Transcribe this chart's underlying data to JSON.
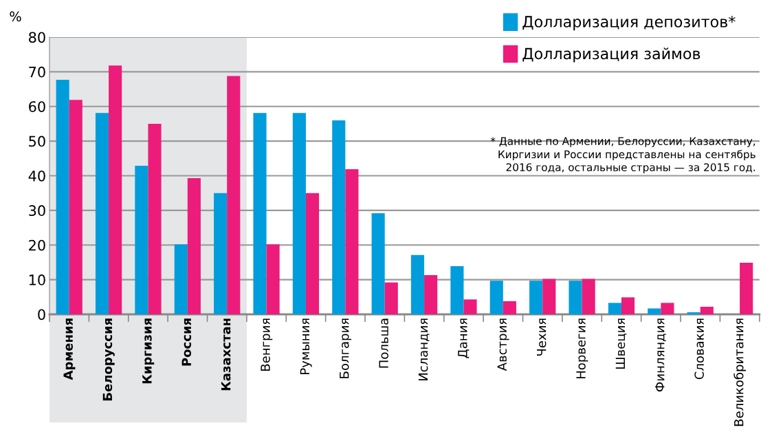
{
  "chart_data": {
    "type": "bar",
    "ylabel": "%",
    "categories": [
      "Армения",
      "Белоруссия",
      "Киргизия",
      "Россия",
      "Казахстан",
      "Венгрия",
      "Румыния",
      "Болгария",
      "Польша",
      "Исландия",
      "Дания",
      "Австрия",
      "Чехия",
      "Норвегия",
      "Швеция",
      "Финляндия",
      "Словакия",
      "Великобритания"
    ],
    "series": [
      {
        "name": "Долларизация депозитов*",
        "color": "#009ddc",
        "values": [
          67.7,
          58.1,
          42.9,
          20.2,
          35,
          58.1,
          58.1,
          56,
          29.2,
          17.1,
          13.9,
          9.7,
          9.7,
          9.7,
          3.3,
          1.7,
          0.6,
          null
        ]
      },
      {
        "name": "Долларизация займов",
        "color": "#ec1c7a",
        "values": [
          61.9,
          71.8,
          55,
          39.3,
          68.8,
          20.2,
          35,
          41.9,
          9.2,
          11.3,
          4.3,
          3.8,
          10.2,
          10.2,
          4.9,
          3.3,
          2.2,
          14.9
        ]
      }
    ],
    "ylim": [
      0,
      80
    ],
    "yticks": [
      0,
      10,
      20,
      30,
      40,
      50,
      60,
      70,
      80
    ],
    "grid": "y",
    "legend": "top right",
    "bands": [
      {
        "axis": "x",
        "from": "Армения",
        "to": "Казахстан",
        "color": "#e5e6e8"
      }
    ],
    "annotations": [
      "* Данные по Армении, Белоруссии, Казахстану,\nКиргизии и России представлены на сентябрь\n2016 года, остальные страны — за 2015 год."
    ]
  }
}
